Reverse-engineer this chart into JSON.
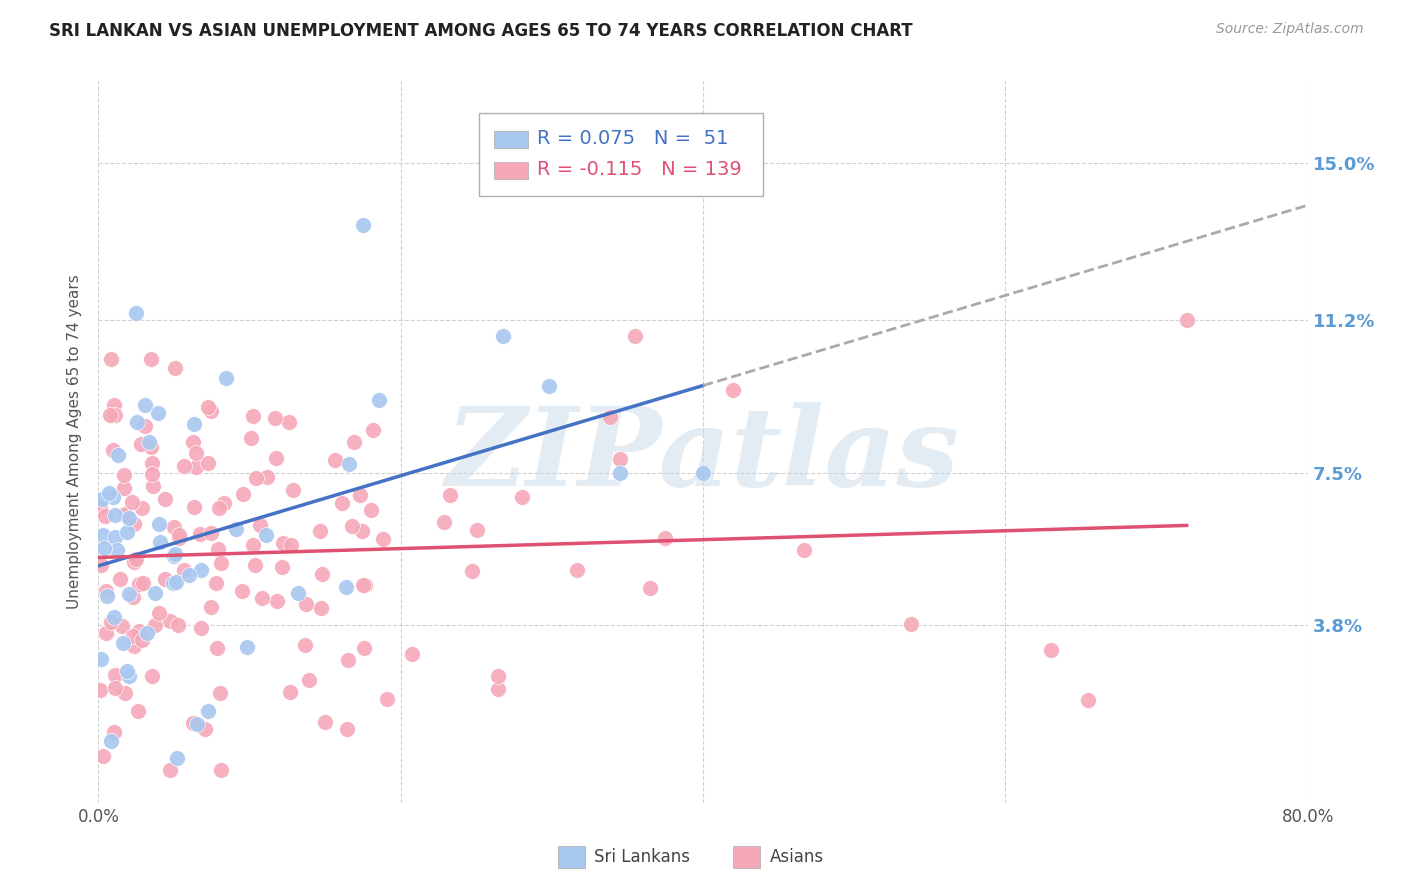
{
  "title": "SRI LANKAN VS ASIAN UNEMPLOYMENT AMONG AGES 65 TO 74 YEARS CORRELATION CHART",
  "source": "Source: ZipAtlas.com",
  "ylabel": "Unemployment Among Ages 65 to 74 years",
  "ytick_labels": [
    "3.8%",
    "7.5%",
    "11.2%",
    "15.0%"
  ],
  "ytick_values": [
    0.038,
    0.075,
    0.112,
    0.15
  ],
  "xlim": [
    0.0,
    0.8
  ],
  "ylim": [
    -0.005,
    0.17
  ],
  "sri_lankan_color": "#a8c8f0",
  "asian_color": "#f5a8b8",
  "sri_lankan_line_color": "#4472c4",
  "asian_line_color": "#e05070",
  "dash_color": "#aaaaaa",
  "sri_lankan_R": 0.075,
  "sri_lankan_N": 51,
  "asian_R": -0.115,
  "asian_N": 139,
  "watermark_text": "ZIPatlas",
  "background_color": "#ffffff",
  "grid_color": "#cccccc",
  "title_color": "#222222",
  "source_color": "#999999",
  "ytick_color": "#5b9bd5",
  "xtick_color": "#555555",
  "ylabel_color": "#555555"
}
